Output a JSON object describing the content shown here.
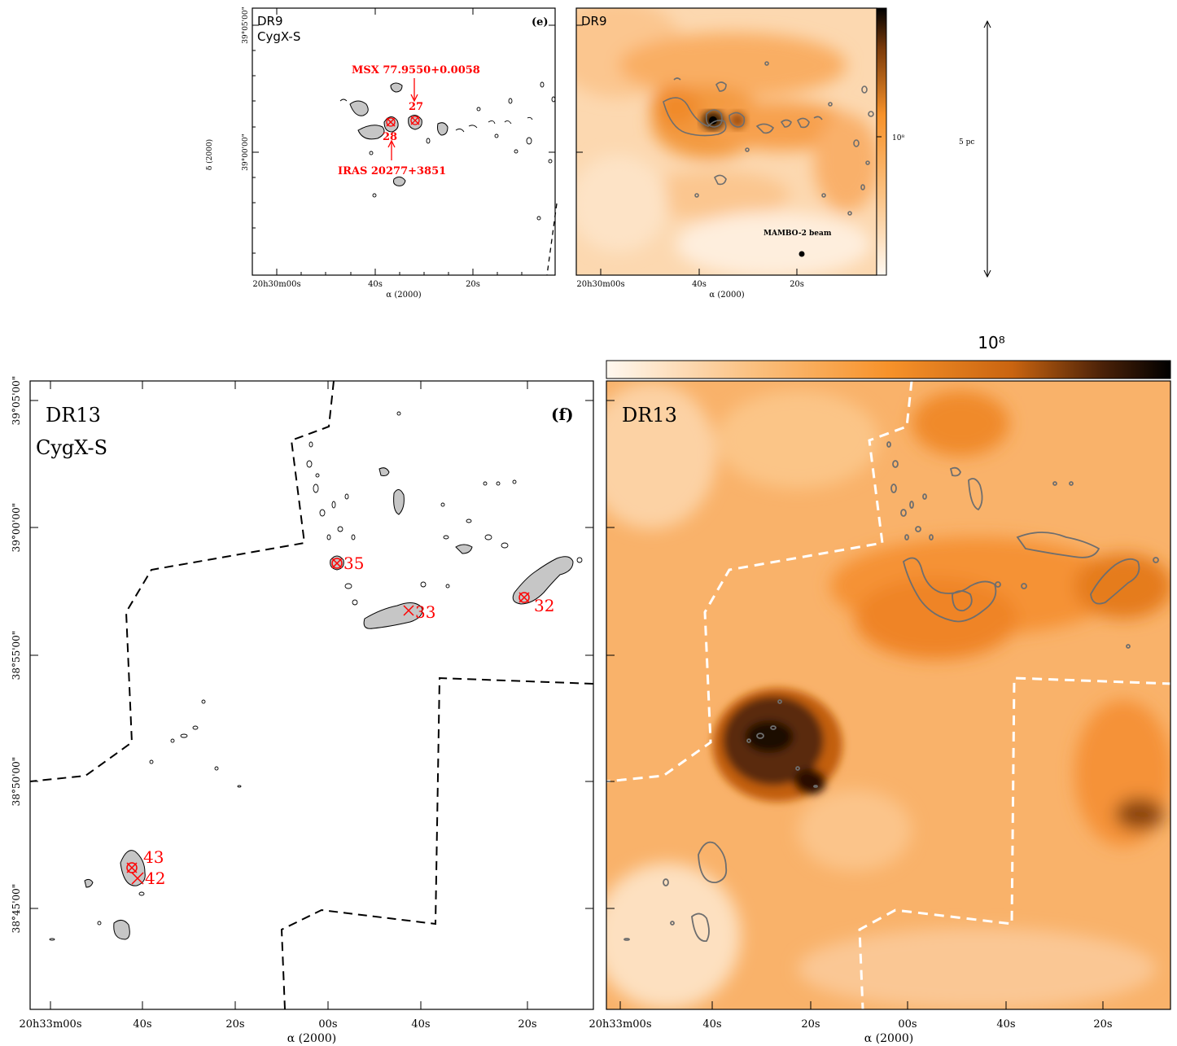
{
  "colors": {
    "background": "#ffffff",
    "orange": "#f7962f",
    "contour_grey": "#6e6e6e",
    "label_red": "#ff0000",
    "fill_grey": "#c6c6c6"
  },
  "top_left": {
    "field": "DR9",
    "region": "CygX-S",
    "panel": "(e)",
    "msx_label": "MSX 77.9550+0.0058",
    "iras_label": "IRAS 20277+3851",
    "src_a": "27",
    "src_b": "28",
    "yaxis_label": "δ (2000)",
    "xaxis_label": "α (2000)",
    "yticks": [
      "39°05'00\"",
      "39°00'00\""
    ],
    "xticks": [
      "20h30m00s",
      "40s",
      "20s"
    ]
  },
  "top_right": {
    "field": "DR9",
    "colorbar_tick": "10⁸",
    "beam_label": "MAMBO-2 beam",
    "xaxis_label": "α (2000)",
    "xticks": [
      "20h30m00s",
      "40s",
      "20s"
    ]
  },
  "scale": {
    "label": "5 pc"
  },
  "bottom_left": {
    "field": "DR13",
    "region": "CygX-S",
    "panel": "(f)",
    "sources": [
      "35",
      "33",
      "32",
      "43",
      "42"
    ],
    "yticks": [
      "39°05'00\"",
      "39°00'00\"",
      "38°55'00\"",
      "38°50'00\"",
      "38°45'00\""
    ],
    "xticks": [
      "20h33m00s",
      "40s",
      "20s",
      "00s",
      "40s",
      "20s"
    ],
    "xaxis_label": "α (2000)"
  },
  "bottom_right": {
    "field": "DR13",
    "colorbar_tick": "10⁸",
    "xticks": [
      "20h33m00s",
      "40s",
      "20s",
      "00s",
      "40s",
      "20s"
    ],
    "xaxis_label": "α (2000)"
  }
}
